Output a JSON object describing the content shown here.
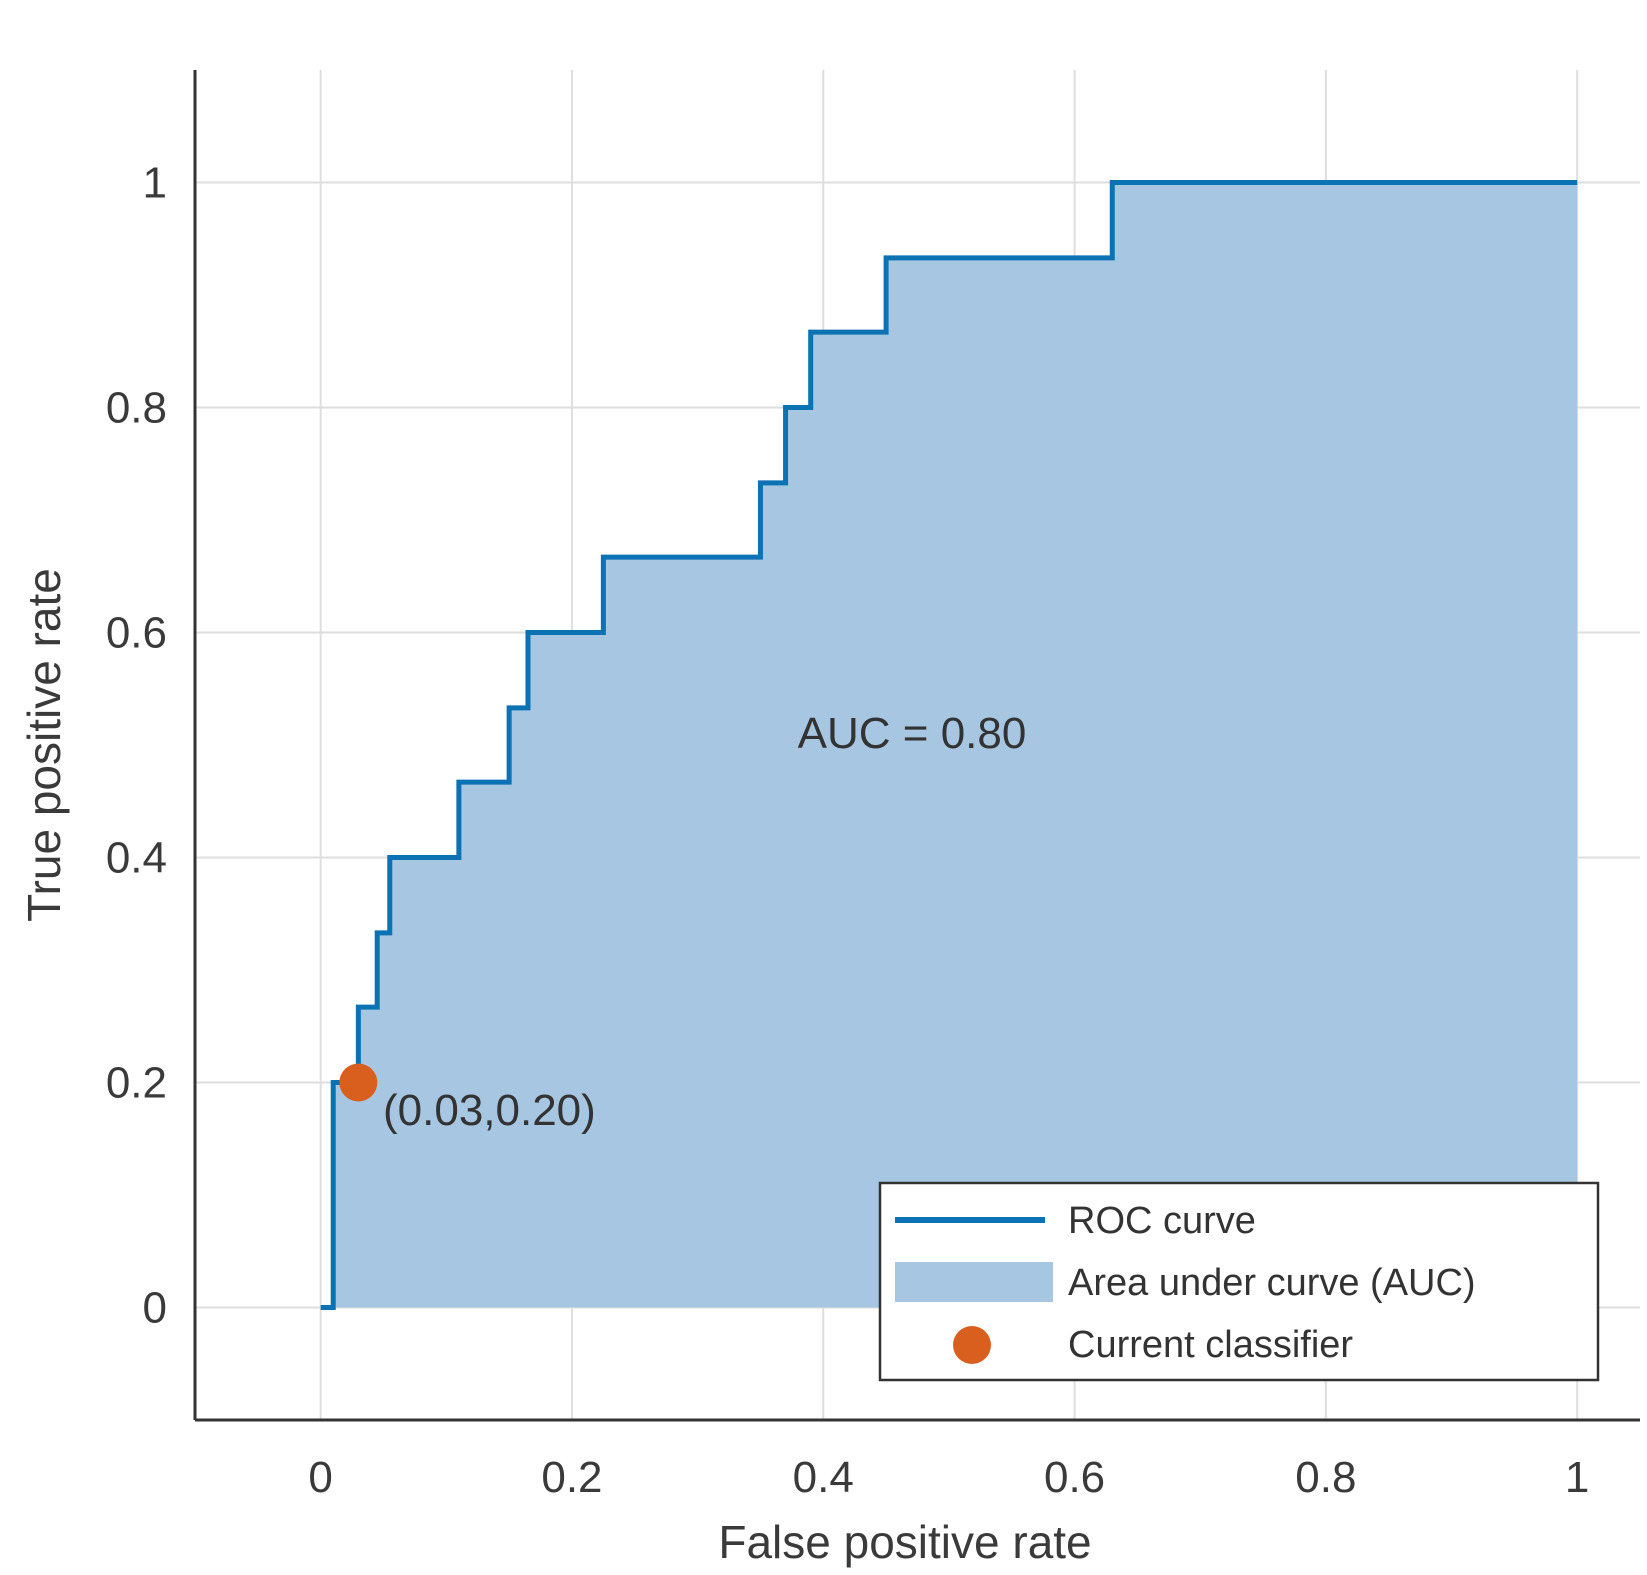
{
  "chart_data": {
    "type": "area",
    "title": "",
    "xlabel": "False positive rate",
    "ylabel": "True positive rate",
    "xlim": [
      -0.1,
      1.05
    ],
    "ylim": [
      -0.1,
      1.1
    ],
    "grid": true,
    "x_ticks": [
      "0",
      "0.2",
      "0.4",
      "0.6",
      "0.8",
      "1"
    ],
    "x_tick_values": [
      0,
      0.2,
      0.4,
      0.6,
      0.8,
      1
    ],
    "y_ticks": [
      "0",
      "0.2",
      "0.4",
      "0.6",
      "0.8",
      "1"
    ],
    "y_tick_values": [
      0,
      0.2,
      0.4,
      0.6,
      0.8,
      1
    ],
    "series": [
      {
        "name": "ROC curve",
        "style": "line",
        "color": "#0b72b3",
        "x": [
          0,
          0.01,
          0.01,
          0.03,
          0.03,
          0.045,
          0.045,
          0.055,
          0.055,
          0.11,
          0.11,
          0.15,
          0.15,
          0.165,
          0.165,
          0.225,
          0.225,
          0.35,
          0.35,
          0.37,
          0.37,
          0.39,
          0.39,
          0.45,
          0.45,
          0.63,
          0.63,
          1
        ],
        "y": [
          0,
          0,
          0.2,
          0.2,
          0.267,
          0.267,
          0.333,
          0.333,
          0.4,
          0.4,
          0.467,
          0.467,
          0.533,
          0.533,
          0.6,
          0.6,
          0.667,
          0.667,
          0.733,
          0.733,
          0.8,
          0.8,
          0.867,
          0.867,
          0.933,
          0.933,
          1,
          1
        ]
      },
      {
        "name": "Area under curve (AUC)",
        "style": "area",
        "color": "#a7c6e1"
      },
      {
        "name": "Current classifier",
        "style": "marker",
        "color": "#d95f1e",
        "x": [
          0.03
        ],
        "y": [
          0.2
        ]
      }
    ],
    "annotations": [
      {
        "text": "AUC = 0.80",
        "x": 0.5,
        "y": 0.5
      },
      {
        "text": "(0.03,0.20)",
        "x": 0.065,
        "y": 0.17
      }
    ],
    "legend_position": "bottom-right"
  }
}
